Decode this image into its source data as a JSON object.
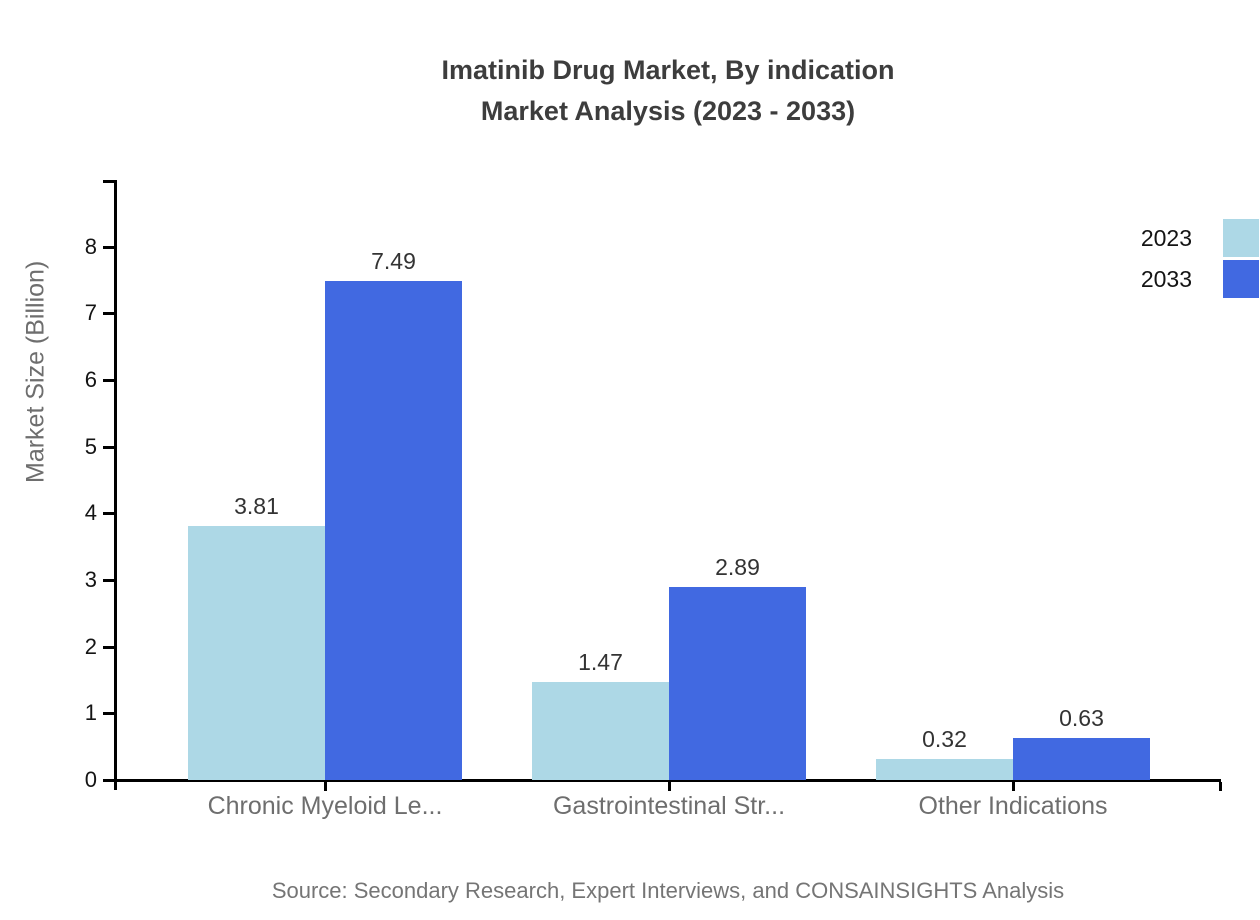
{
  "chart_data": {
    "type": "bar",
    "title": "Imatinib Drug Market, By indication",
    "subtitle": "Market Analysis (2023 - 2033)",
    "ylabel": "Market Size (Billion)",
    "xlabel": "",
    "categories": [
      "Chronic Myeloid Le...",
      "Gastrointestinal Str...",
      "Other Indications"
    ],
    "series": [
      {
        "name": "2023",
        "color": "#ADD8E6",
        "values": [
          3.81,
          1.47,
          0.32
        ]
      },
      {
        "name": "2033",
        "color": "#4169E1",
        "values": [
          7.49,
          2.89,
          0.63
        ]
      }
    ],
    "y_ticks": [
      0,
      1,
      2,
      3,
      4,
      5,
      6,
      7,
      8
    ],
    "ylim": [
      0,
      9
    ],
    "grid": false,
    "legend_position": "top-right",
    "value_labels_shown": true,
    "source": "Source: Secondary Research, Expert Interviews, and CONSAINSIGHTS Analysis"
  }
}
